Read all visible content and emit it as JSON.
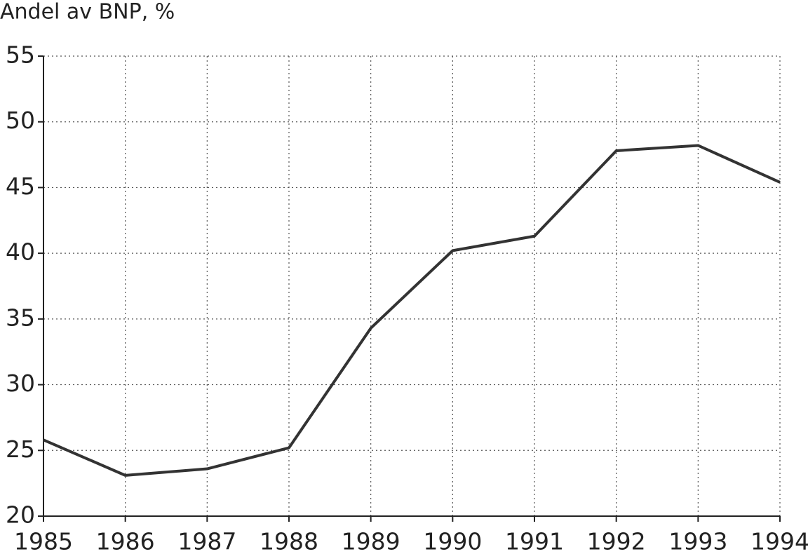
{
  "chart_data": {
    "type": "line",
    "y_label": "Andel av BNP, %",
    "x": [
      1985,
      1986,
      1987,
      1988,
      1989,
      1990,
      1991,
      1992,
      1993,
      1994
    ],
    "series": [
      {
        "color": "#333333",
        "values": [
          25.8,
          23.1,
          23.6,
          25.2,
          34.3,
          40.2,
          41.3,
          47.8,
          48.2,
          45.4
        ]
      }
    ],
    "xlim": [
      1985,
      1994
    ],
    "xticks": [
      1985,
      1986,
      1987,
      1988,
      1989,
      1990,
      1991,
      1992,
      1993,
      1994
    ],
    "ylim": [
      20,
      55
    ],
    "yticks": [
      20,
      25,
      30,
      35,
      40,
      45,
      50,
      55
    ],
    "grid": true
  }
}
